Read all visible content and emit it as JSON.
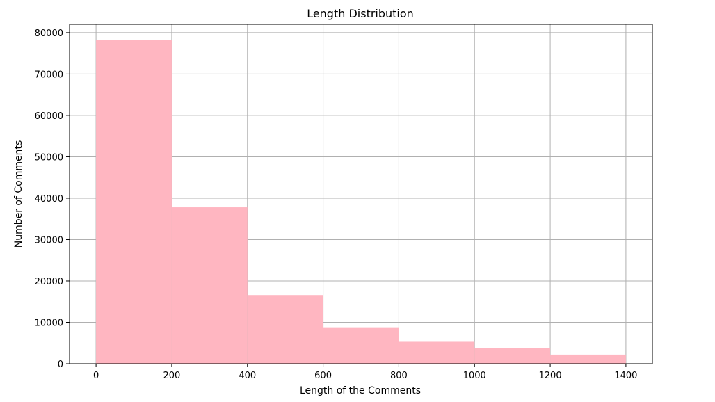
{
  "chart_data": {
    "type": "bar",
    "title": "Length Distribution",
    "xlabel": "Length of the Comments",
    "ylabel": "Number of Comments",
    "bins": [
      {
        "start": 0,
        "end": 200,
        "value": 78300
      },
      {
        "start": 200,
        "end": 400,
        "value": 37800
      },
      {
        "start": 400,
        "end": 600,
        "value": 16600
      },
      {
        "start": 600,
        "end": 800,
        "value": 8800
      },
      {
        "start": 800,
        "end": 1000,
        "value": 5300
      },
      {
        "start": 1000,
        "end": 1200,
        "value": 3800
      },
      {
        "start": 1200,
        "end": 1400,
        "value": 2200
      }
    ],
    "xlim": [
      -70,
      1470
    ],
    "ylim": [
      0,
      82000
    ],
    "xticks": [
      0,
      200,
      400,
      600,
      800,
      1000,
      1200,
      1400
    ],
    "yticks": [
      0,
      10000,
      20000,
      30000,
      40000,
      50000,
      60000,
      70000,
      80000
    ],
    "grid": true,
    "colors": {
      "bar": "#ffb6c1",
      "grid": "#b0b0b0",
      "axis": "#000000"
    }
  }
}
